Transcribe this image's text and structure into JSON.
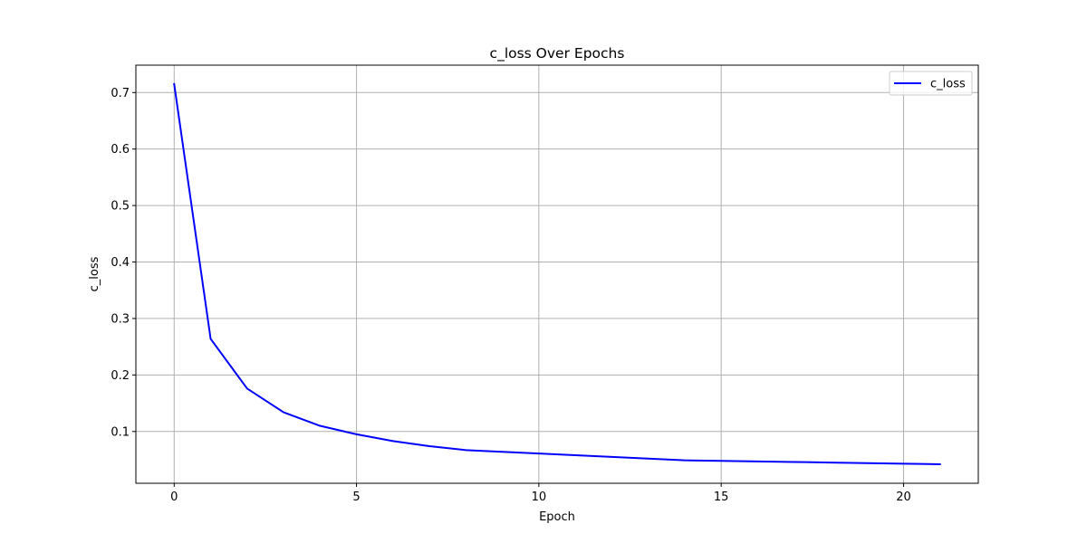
{
  "chart_data": {
    "type": "line",
    "title": "c_loss Over Epochs",
    "xlabel": "Epoch",
    "ylabel": "c_loss",
    "xlim": [
      -1.05,
      22.05
    ],
    "ylim": [
      0.0083,
      0.7485
    ],
    "xticks": [
      0,
      5,
      10,
      15,
      20
    ],
    "yticks": [
      0.1,
      0.2,
      0.3,
      0.4,
      0.5,
      0.6,
      0.7
    ],
    "ytick_labels": [
      "0.1",
      "0.2",
      "0.3",
      "0.4",
      "0.5",
      "0.6",
      "0.7"
    ],
    "grid": true,
    "legend_position": "top-right",
    "series": [
      {
        "name": "c_loss",
        "color": "#0000ff",
        "x": [
          0,
          1,
          2,
          3,
          4,
          5,
          6,
          7,
          8,
          9,
          10,
          11,
          12,
          13,
          14,
          15,
          16,
          17,
          18,
          19,
          20,
          21
        ],
        "values": [
          0.715,
          0.264,
          0.176,
          0.134,
          0.11,
          0.095,
          0.083,
          0.074,
          0.067,
          0.064,
          0.061,
          0.058,
          0.055,
          0.052,
          0.049,
          0.048,
          0.047,
          0.046,
          0.045,
          0.044,
          0.043,
          0.042
        ]
      }
    ]
  }
}
